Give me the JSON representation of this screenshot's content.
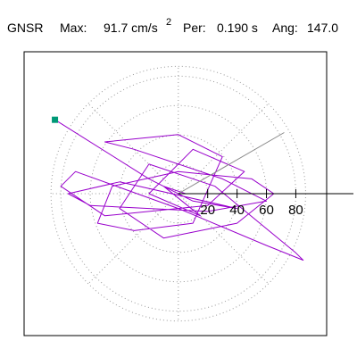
{
  "header": {
    "station": "GNSR",
    "max_label": "Max:",
    "max_value": "91.7 cm/s",
    "max_power": "2",
    "per_label": "Per:",
    "per_value": "0.190 s",
    "ang_label": "Ang:",
    "ang_value": "147.0"
  },
  "chart_data": {
    "type": "line",
    "color": "#9900cc",
    "start_marker_color": "#009977",
    "x": [
      -84,
      -20,
      10,
      40,
      -40,
      -75,
      -60,
      20,
      60,
      30,
      -30,
      -50,
      0,
      30,
      10,
      -30,
      -55,
      -45,
      0,
      50,
      65,
      40,
      -10,
      -40,
      -20,
      25,
      80,
      85,
      60,
      0,
      -70,
      -80,
      -50,
      20,
      45,
      10,
      -20,
      15,
      -10,
      5
    ],
    "y": [
      50,
      10,
      -5,
      -10,
      8,
      0,
      -8,
      -12,
      -5,
      10,
      30,
      35,
      40,
      25,
      -20,
      -25,
      -20,
      5,
      15,
      10,
      0,
      -20,
      -30,
      -10,
      20,
      5,
      -40,
      -45,
      -35,
      -10,
      15,
      5,
      -15,
      -8,
      15,
      30,
      0,
      -15,
      5,
      0
    ],
    "xlim": [
      -105,
      101
    ],
    "ylim": [
      -96,
      96
    ],
    "rticks": [
      20,
      40,
      60,
      80
    ]
  }
}
